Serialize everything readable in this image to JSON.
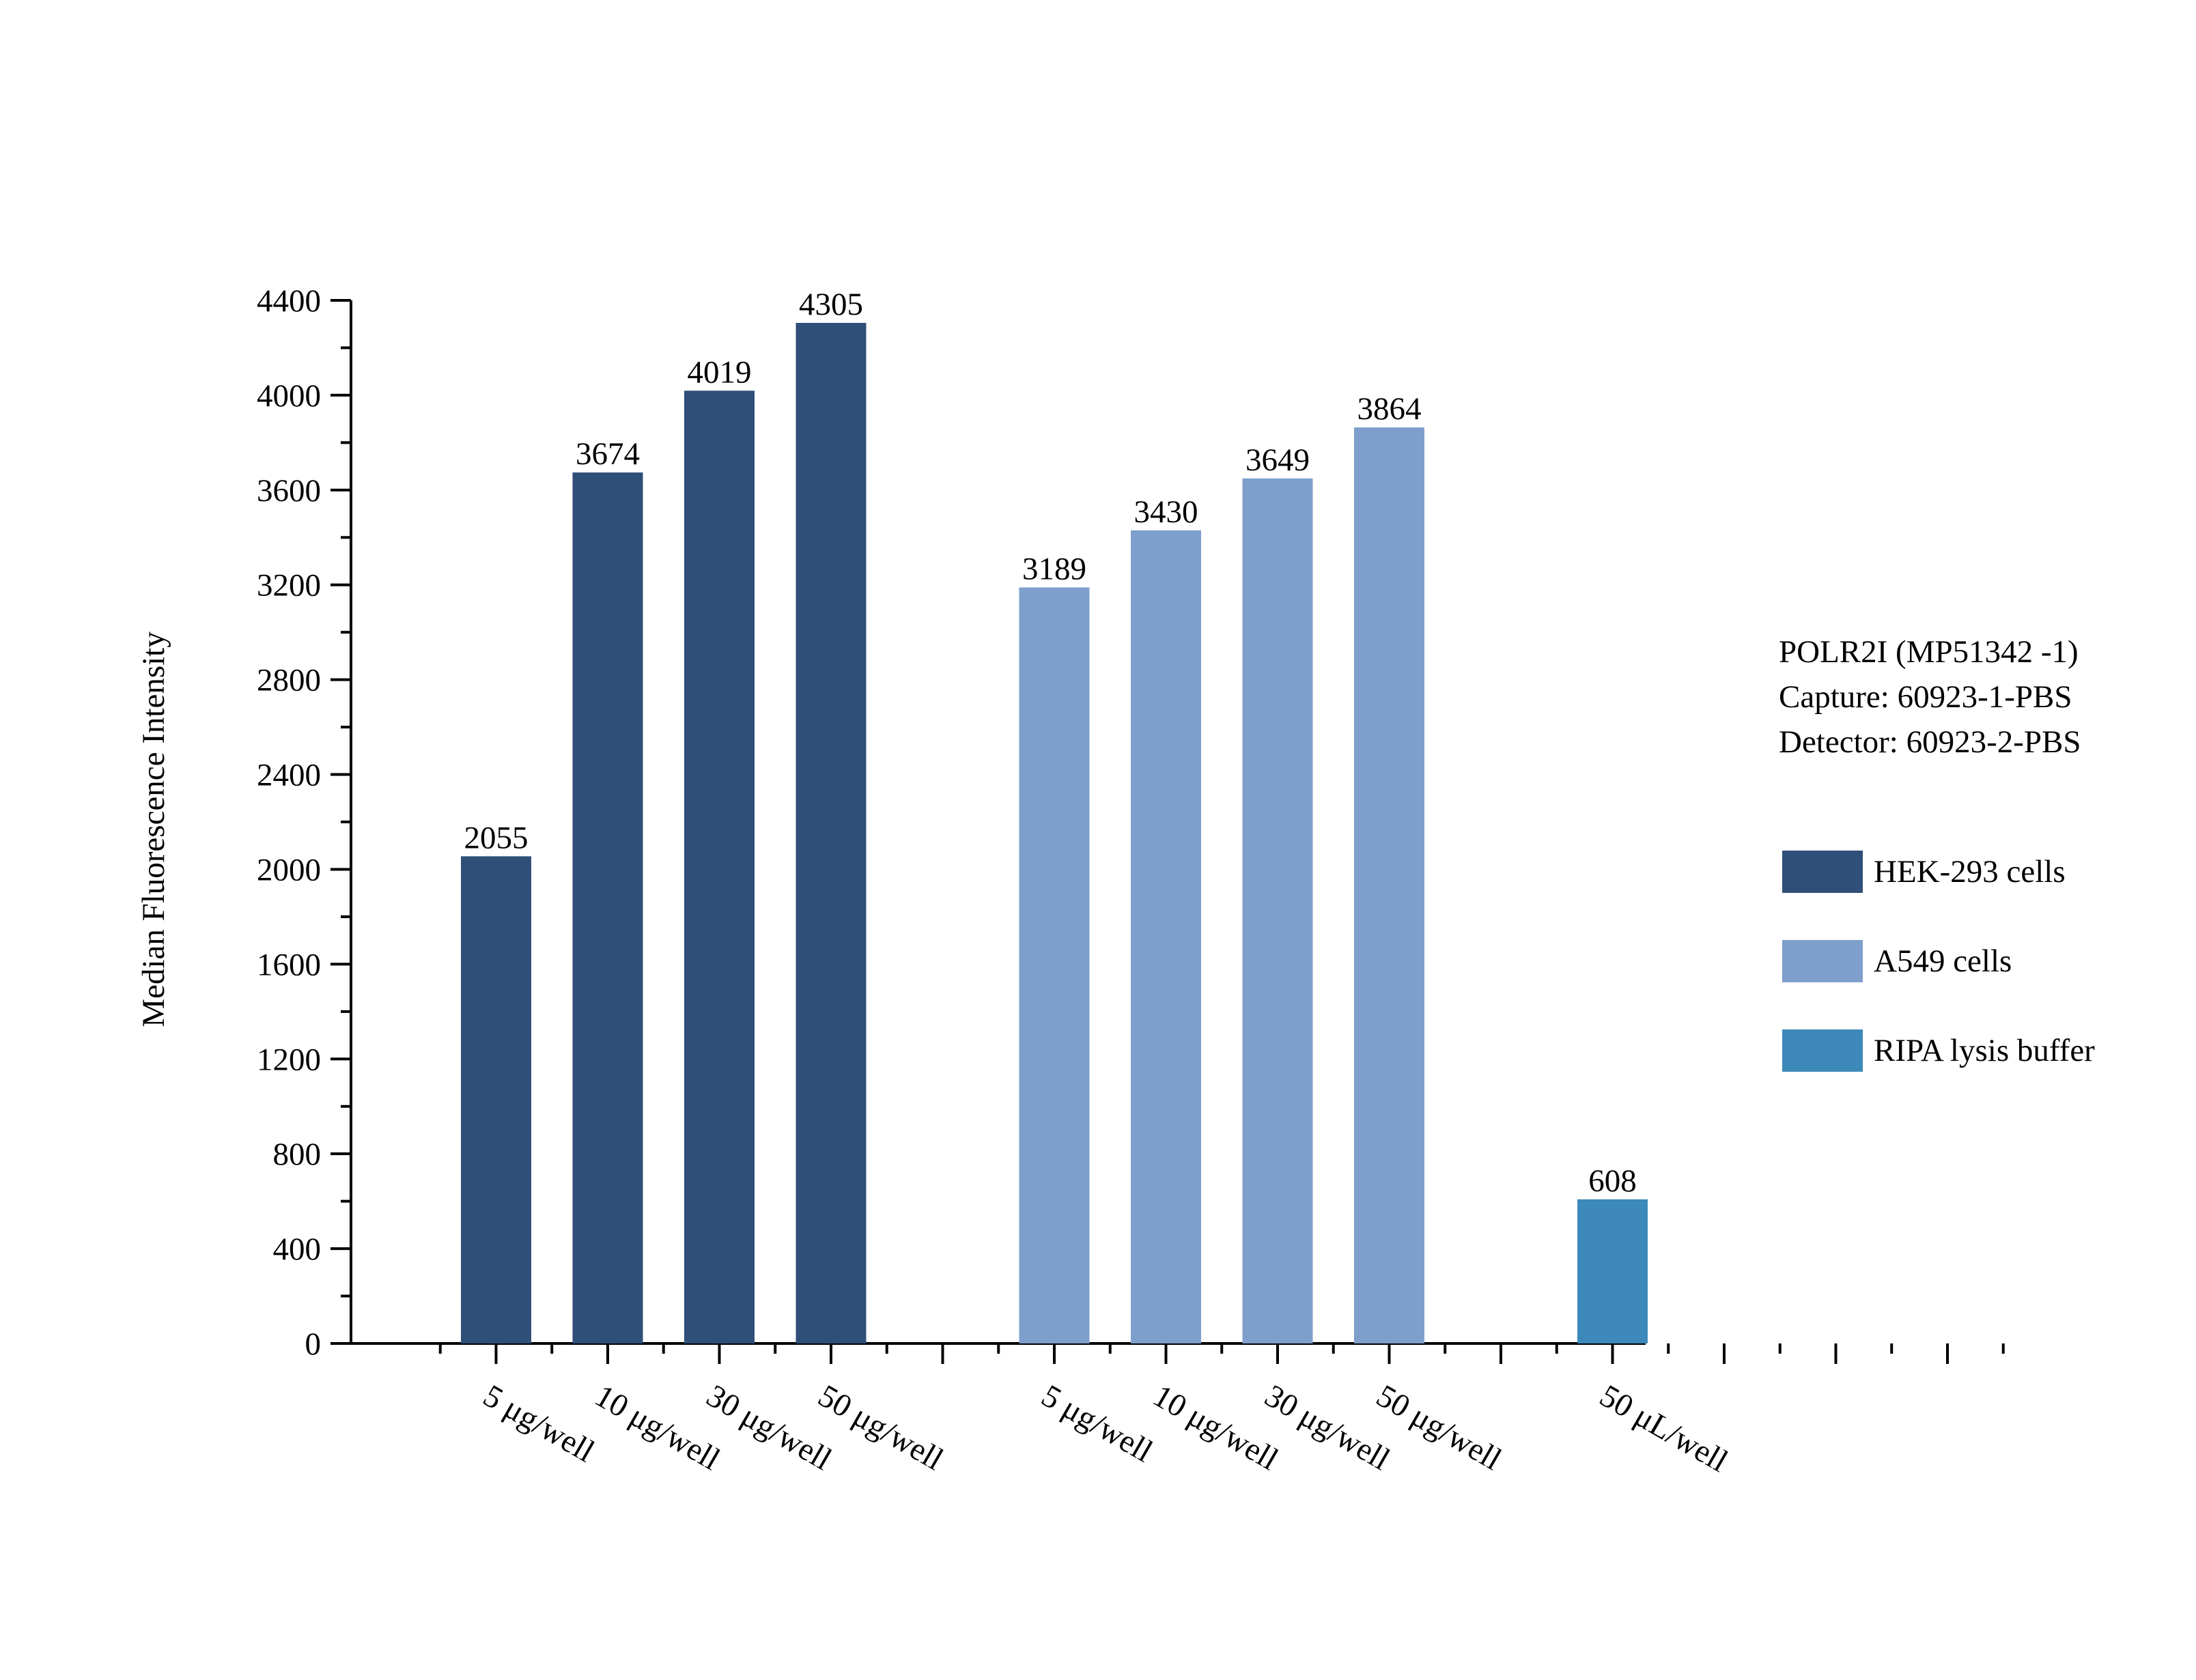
{
  "chart_data": {
    "type": "bar",
    "ylabel": "Median Fluorescence Intensity",
    "ylim": [
      0,
      4400
    ],
    "yticks": [
      0,
      400,
      800,
      1200,
      1600,
      2000,
      2400,
      2800,
      3200,
      3600,
      4000,
      4400
    ],
    "grid": false,
    "legend_position": "right",
    "groups": [
      {
        "series": "HEK-293 cells",
        "color": "#2F4F79",
        "categories": [
          "5 μg/well",
          "10 μg/well",
          "30 μg/well",
          "50 μg/well"
        ],
        "values": [
          2055,
          3674,
          4019,
          4305
        ]
      },
      {
        "series": "A549 cells",
        "color": "#7E9FCC",
        "categories": [
          "5 μg/well",
          "10 μg/well",
          "30 μg/well",
          "50 μg/well"
        ],
        "values": [
          3189,
          3430,
          3649,
          3864
        ]
      },
      {
        "series": "RIPA lysis buffer",
        "color": "#3D89BA",
        "categories": [
          "50 μL/well"
        ],
        "values": [
          608
        ]
      }
    ]
  },
  "legend": {
    "header": [
      "POLR2I (MP51342 -1)",
      "Capture: 60923-1-PBS",
      "Detector: 60923-2-PBS"
    ],
    "items": [
      {
        "label": "HEK-293 cells",
        "color": "#2F4F79"
      },
      {
        "label": "A549 cells",
        "color": "#7E9FCC"
      },
      {
        "label": "RIPA lysis buffer",
        "color": "#3D89BA"
      }
    ]
  }
}
